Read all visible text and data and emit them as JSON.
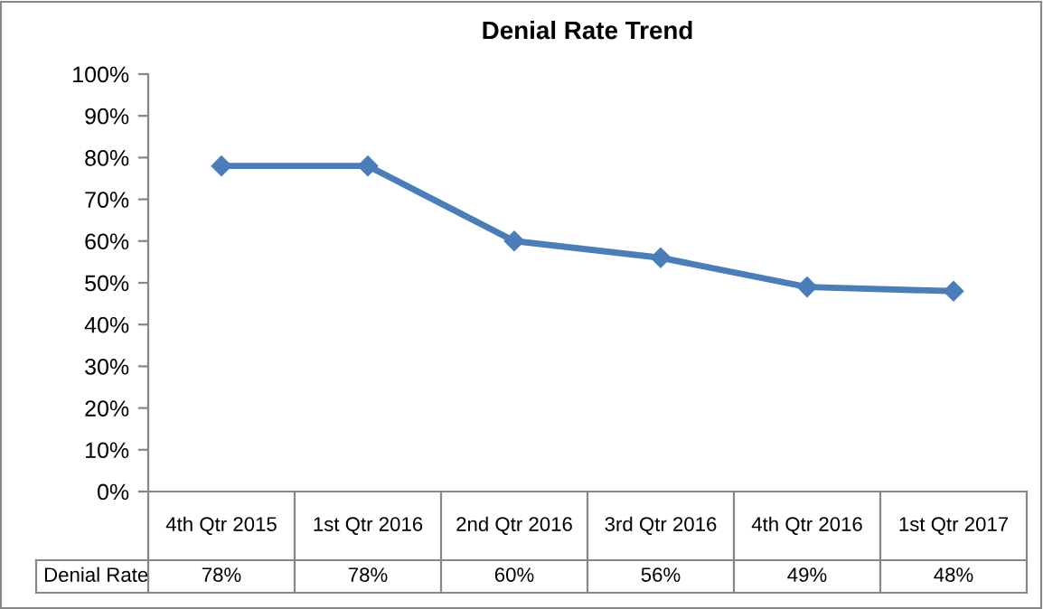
{
  "chart_data": {
    "type": "line",
    "title": "Denial Rate Trend",
    "categories": [
      "4th Qtr 2015",
      "1st Qtr 2016",
      "2nd Qtr 2016",
      "3rd Qtr 2016",
      "4th Qtr 2016",
      "1st Qtr 2017"
    ],
    "series": [
      {
        "name": "Denial Rate",
        "color": "#4a7ebb",
        "values": [
          78,
          78,
          60,
          56,
          49,
          48
        ],
        "value_labels": [
          "78%",
          "78%",
          "60%",
          "56%",
          "49%",
          "48%"
        ]
      }
    ],
    "ylim": [
      0,
      100
    ],
    "yticks": [
      {
        "value": 0,
        "label": "0%"
      },
      {
        "value": 10,
        "label": "10%"
      },
      {
        "value": 20,
        "label": "20%"
      },
      {
        "value": 30,
        "label": "30%"
      },
      {
        "value": 40,
        "label": "40%"
      },
      {
        "value": 50,
        "label": "50%"
      },
      {
        "value": 60,
        "label": "60%"
      },
      {
        "value": 70,
        "label": "70%"
      },
      {
        "value": 80,
        "label": "80%"
      },
      {
        "value": 90,
        "label": "90%"
      },
      {
        "value": 100,
        "label": "100%"
      }
    ],
    "grid": false,
    "legend": false,
    "marker": "diamond",
    "line_style": "solid"
  }
}
